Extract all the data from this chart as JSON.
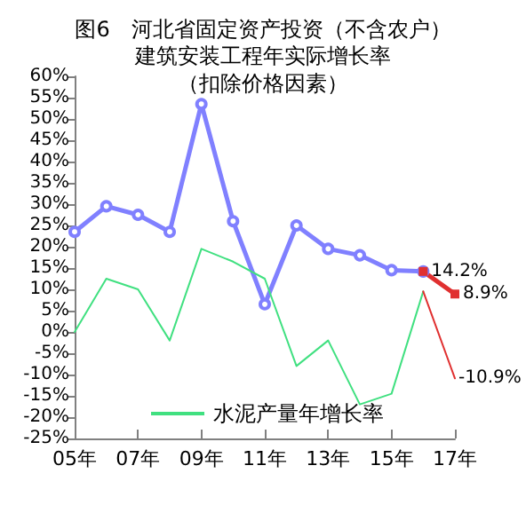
{
  "chart_data": {
    "type": "line",
    "title": "图6　河北省固定资产投资（不含农户）建筑安装工程年实际增长率",
    "subtitle": "（扣除价格因素）",
    "categories": [
      "05年",
      null,
      "07年",
      null,
      "09年",
      null,
      "11年",
      null,
      "13年",
      null,
      "15年",
      null,
      "17年"
    ],
    "series": [
      {
        "color": "#8080ff",
        "marker": "circle",
        "values": [
          23.5,
          29.5,
          27.5,
          23.5,
          53.5,
          26,
          6.5,
          25,
          19.5,
          18,
          14.5,
          14.2,
          null
        ]
      },
      {
        "name": "水泥产量年增长率",
        "color": "#40e080",
        "marker": "none",
        "values": [
          0,
          12.5,
          10,
          -2,
          19.5,
          16.5,
          12.5,
          -8,
          -2,
          -17,
          -14.5,
          9.5,
          null
        ]
      },
      {
        "color": "#e03030",
        "marker": "square",
        "values": [
          null,
          null,
          null,
          null,
          null,
          null,
          null,
          null,
          null,
          null,
          null,
          14.2,
          8.9
        ],
        "value_labels": [
          null,
          null,
          null,
          null,
          null,
          null,
          null,
          null,
          null,
          null,
          null,
          "14.2%",
          "8.9%"
        ]
      },
      {
        "color": "#e03030",
        "marker": "none",
        "values": [
          null,
          null,
          null,
          null,
          null,
          null,
          null,
          null,
          null,
          null,
          null,
          9.5,
          -10.9
        ],
        "value_labels": [
          null,
          null,
          null,
          null,
          null,
          null,
          null,
          null,
          null,
          null,
          null,
          null,
          "-10.9%"
        ]
      }
    ],
    "ylim": [
      -25,
      60
    ],
    "yticks": [
      {
        "value": -25,
        "label": "-25%"
      },
      {
        "value": -20,
        "label": "-20%"
      },
      {
        "value": -15,
        "label": "-15%"
      },
      {
        "value": -10,
        "label": "-10%"
      },
      {
        "value": -5,
        "label": "-5%"
      },
      {
        "value": 0,
        "label": "0%"
      },
      {
        "value": 5,
        "label": "5%"
      },
      {
        "value": 10,
        "label": "10%"
      },
      {
        "value": 15,
        "label": "15%"
      },
      {
        "value": 20,
        "label": "20%"
      },
      {
        "value": 25,
        "label": "25%"
      },
      {
        "value": 30,
        "label": "30%"
      },
      {
        "value": 35,
        "label": "35%"
      },
      {
        "value": 40,
        "label": "40%"
      },
      {
        "value": 45,
        "label": "45%"
      },
      {
        "value": 50,
        "label": "50%"
      },
      {
        "value": 55,
        "label": "55%"
      },
      {
        "value": 60,
        "label": "60%"
      }
    ],
    "grid": false,
    "legend": "bottom"
  }
}
